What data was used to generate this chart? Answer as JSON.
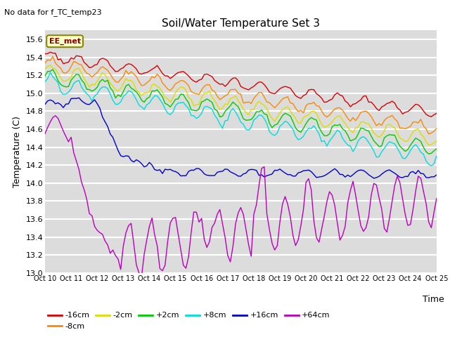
{
  "title": "Soil/Water Temperature Set 3",
  "subtitle": "No data for f_TC_temp23",
  "xlabel": "Time",
  "ylabel": "Temperature (C)",
  "ylim": [
    13.0,
    15.7
  ],
  "background_color": "#dcdcdc",
  "plot_bg_color": "#dcdcdc",
  "grid_color": "white",
  "legend_label": "EE_met",
  "series_labels": [
    "-16cm",
    "-8cm",
    "-2cm",
    "+2cm",
    "+8cm",
    "+16cm",
    "+64cm"
  ],
  "series_colors": [
    "#dd0000",
    "#ff8800",
    "#dddd00",
    "#00cc00",
    "#00dddd",
    "#0000cc",
    "#bb00bb"
  ],
  "ytick_vals": [
    13.0,
    13.2,
    13.4,
    13.6,
    13.8,
    14.0,
    14.2,
    14.4,
    14.6,
    14.8,
    15.0,
    15.2,
    15.4,
    15.6
  ]
}
